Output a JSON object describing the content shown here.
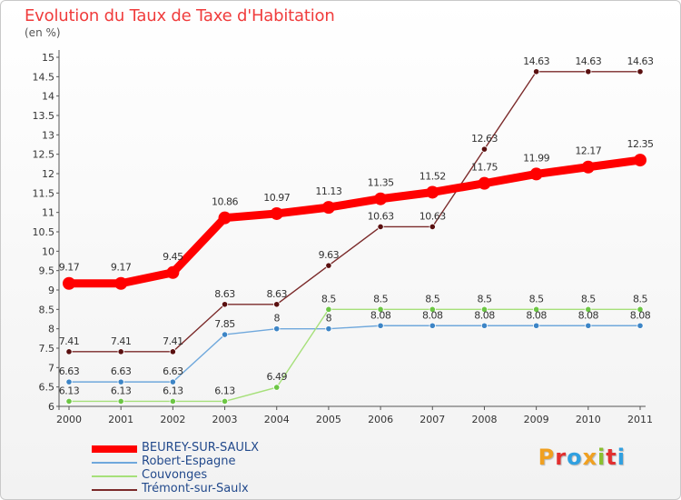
{
  "header": {
    "title": "Evolution du Taux de Taxe d'Habitation",
    "subtitle": "(en %)"
  },
  "logo": {
    "text": "Proxiti",
    "colors": [
      "#f0a020",
      "#e23030",
      "#30a0e0",
      "#f0a020",
      "#8ac030",
      "#e23030",
      "#30a0e0"
    ]
  },
  "chart_data": {
    "type": "line",
    "title": "Evolution du Taux de Taxe d'Habitation",
    "subtitle": "(en %)",
    "xlabel": "",
    "ylabel": "",
    "x": [
      "2000",
      "2001",
      "2002",
      "2003",
      "2004",
      "2005",
      "2006",
      "2007",
      "2008",
      "2009",
      "2010",
      "2011"
    ],
    "ylim": [
      6,
      15
    ],
    "yticks": [
      "6",
      "6.5",
      "7",
      "7.5",
      "8",
      "8.5",
      "9",
      "9.5",
      "10",
      "10.5",
      "11",
      "11.5",
      "12",
      "12.5",
      "13",
      "13.5",
      "14",
      "14.5",
      "15"
    ],
    "grid": false,
    "legend": "bottom-left",
    "series": [
      {
        "name": "BEUREY-SUR-SAULX",
        "color": "#ff0000",
        "emphasis": true,
        "values": [
          9.17,
          9.17,
          9.45,
          10.86,
          10.97,
          11.13,
          11.35,
          11.52,
          11.75,
          11.99,
          12.17,
          12.35
        ],
        "labels": [
          "9.17",
          "9.17",
          "9.45",
          "10.86",
          "10.97",
          "11.13",
          "11.35",
          "11.52",
          "11.75",
          "11.99",
          "12.17",
          "12.35"
        ]
      },
      {
        "name": "Robert-Espagne",
        "color": "#6fa8dc",
        "marker": "#3d85c6",
        "values": [
          6.63,
          6.63,
          6.63,
          7.85,
          8,
          8,
          8.08,
          8.08,
          8.08,
          8.08,
          8.08,
          8.08
        ],
        "labels": [
          "6.63",
          "6.63",
          "6.63",
          "7.85",
          "8",
          "8",
          "8.08",
          "8.08",
          "8.08",
          "8.08",
          "8.08",
          "8.08"
        ]
      },
      {
        "name": "Couvonges",
        "color": "#a6e07a",
        "marker": "#6cc644",
        "values": [
          6.13,
          6.13,
          6.13,
          6.13,
          6.49,
          8.5,
          8.5,
          8.5,
          8.5,
          8.5,
          8.5,
          8.5
        ],
        "labels": [
          "6.13",
          "6.13",
          "6.13",
          "6.13",
          "6.49",
          "8.5",
          "8.5",
          "8.5",
          "8.5",
          "8.5",
          "8.5",
          "8.5"
        ]
      },
      {
        "name": "Trémont-sur-Saulx",
        "color": "#7b2a2a",
        "marker": "#5a1010",
        "values": [
          7.41,
          7.41,
          7.41,
          8.63,
          8.63,
          9.63,
          10.63,
          10.63,
          12.63,
          14.63,
          14.63,
          14.63
        ],
        "labels": [
          "7.41",
          "7.41",
          "7.41",
          "8.63",
          "8.63",
          "9.63",
          "10.63",
          "10.63",
          "12.63",
          "14.63",
          "14.63",
          "14.63"
        ]
      }
    ]
  }
}
